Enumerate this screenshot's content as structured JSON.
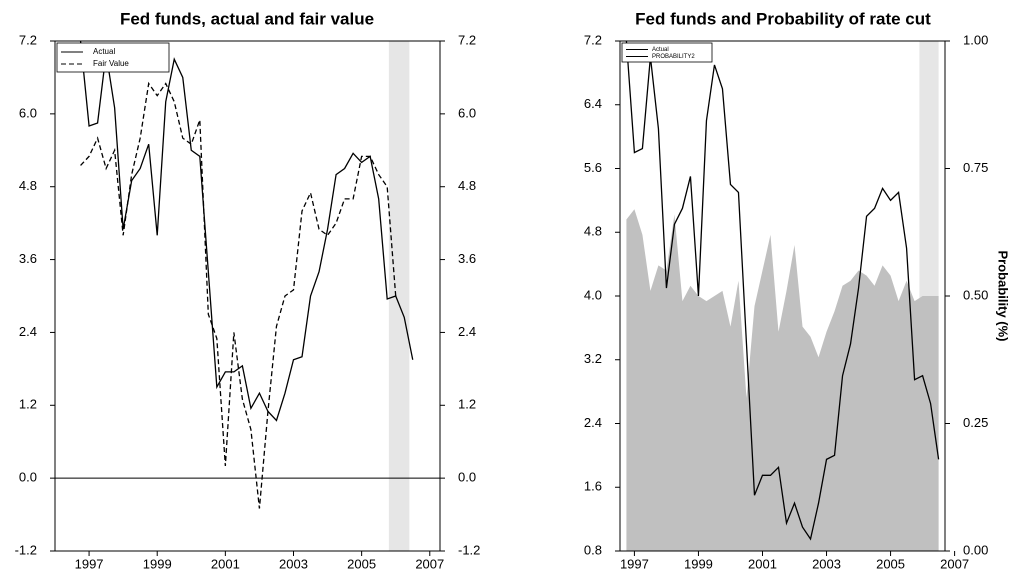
{
  "chart_data": [
    {
      "type": "line",
      "title": "Fed funds, actual and fair value",
      "x": [
        1996.75,
        1997,
        1997.25,
        1997.5,
        1997.75,
        1998,
        1998.25,
        1998.5,
        1998.75,
        1999,
        1999.25,
        1999.5,
        1999.75,
        2000,
        2000.25,
        2000.5,
        2000.75,
        2001,
        2001.25,
        2001.5,
        2001.75,
        2002,
        2002.25,
        2002.5,
        2002.75,
        2003,
        2003.25,
        2003.5,
        2003.75,
        2004,
        2004.25,
        2004.5,
        2004.75,
        2005,
        2005.25,
        2005.5,
        2005.75,
        2006,
        2006.25,
        2006.5
      ],
      "series": [
        {
          "name": "Actual",
          "color": "#000000",
          "dash": false,
          "axis": "y",
          "values": [
            7.2,
            5.8,
            5.85,
            7.0,
            6.1,
            4.1,
            4.9,
            5.1,
            5.5,
            4.0,
            6.2,
            6.9,
            6.6,
            5.4,
            5.3,
            3.4,
            1.5,
            1.75,
            1.75,
            1.85,
            1.15,
            1.4,
            1.1,
            0.95,
            1.4,
            1.95,
            2.0,
            3.0,
            3.4,
            4.1,
            5.0,
            5.1,
            5.35,
            5.2,
            5.3,
            4.6,
            2.95,
            3.0,
            2.65,
            1.95
          ]
        },
        {
          "name": "Fair Value",
          "color": "#000000",
          "dash": true,
          "axis": "y",
          "values": [
            5.15,
            5.3,
            5.6,
            5.1,
            5.4,
            4.0,
            5.0,
            5.6,
            6.5,
            6.3,
            6.5,
            6.2,
            5.6,
            5.5,
            5.9,
            2.7,
            2.3,
            0.2,
            2.4,
            1.3,
            0.8,
            -0.5,
            1.1,
            2.5,
            3.0,
            3.1,
            4.4,
            4.7,
            4.1,
            4.0,
            4.2,
            4.6,
            4.6,
            5.3,
            5.3,
            5.0,
            4.8,
            3.0,
            null,
            null
          ]
        }
      ],
      "xlim": [
        1996.0,
        2007.3
      ],
      "xticks": [
        1997,
        1999,
        2001,
        2003,
        2005,
        2007
      ],
      "ylim": [
        -1.2,
        7.2
      ],
      "yticks": [
        -1.2,
        {
          "value": 0,
          "label": "0.0"
        },
        1.2,
        2.4,
        3.6,
        4.8,
        {
          "value": 6,
          "label": "6.0"
        },
        7.2
      ],
      "y2lim": [
        -1.2,
        7.2
      ],
      "y2ticks": [
        -1.2,
        {
          "value": 0,
          "label": "0.0"
        },
        1.2,
        2.4,
        3.6,
        4.8,
        {
          "value": 6,
          "label": "6.0"
        },
        7.2
      ],
      "shaded_range": [
        2005.8,
        2006.4
      ],
      "zero_line": true,
      "legend": "top-left"
    },
    {
      "type": "line",
      "title": "Fed funds and Probability of rate cut",
      "x": [
        1996.75,
        1997,
        1997.25,
        1997.5,
        1997.75,
        1998,
        1998.25,
        1998.5,
        1998.75,
        1999,
        1999.25,
        1999.5,
        1999.75,
        2000,
        2000.25,
        2000.5,
        2000.75,
        2001,
        2001.25,
        2001.5,
        2001.75,
        2002,
        2002.25,
        2002.5,
        2002.75,
        2003,
        2003.25,
        2003.5,
        2003.75,
        2004,
        2004.25,
        2004.5,
        2004.75,
        2005,
        2005.25,
        2005.5,
        2005.75,
        2006,
        2006.25,
        2006.5
      ],
      "series": [
        {
          "name": "Actual",
          "color": "#000000",
          "dash": false,
          "axis": "y",
          "values": [
            7.2,
            5.8,
            5.85,
            7.0,
            6.1,
            4.1,
            4.9,
            5.1,
            5.5,
            4.0,
            6.2,
            6.9,
            6.6,
            5.4,
            5.3,
            3.4,
            1.5,
            1.75,
            1.75,
            1.85,
            1.15,
            1.4,
            1.1,
            0.95,
            1.4,
            1.95,
            2.0,
            3.0,
            3.4,
            4.1,
            5.0,
            5.1,
            5.35,
            5.2,
            5.3,
            4.6,
            2.95,
            3.0,
            2.65,
            1.95
          ]
        },
        {
          "name": "PROBABILITY2",
          "color": "#c0c0c0",
          "dash": false,
          "axis": "y2",
          "area": true,
          "values": [
            0.65,
            0.67,
            0.62,
            0.51,
            0.56,
            0.55,
            0.66,
            0.49,
            0.52,
            0.5,
            0.49,
            0.5,
            0.51,
            0.44,
            0.53,
            0.3,
            0.48,
            0.55,
            0.62,
            0.43,
            0.51,
            0.6,
            0.44,
            0.42,
            0.38,
            0.43,
            0.47,
            0.52,
            0.53,
            0.55,
            0.54,
            0.52,
            0.56,
            0.54,
            0.49,
            0.53,
            0.49,
            0.5,
            0.5,
            0.5
          ]
        }
      ],
      "xlim": [
        1996.55,
        2006.7
      ],
      "xticks": [
        1997,
        1999,
        2001,
        2003,
        2005,
        2007
      ],
      "ylim": [
        0.8,
        7.2
      ],
      "yticks": [
        0.8,
        1.6,
        2.4,
        3.2,
        {
          "value": 4,
          "label": "4.0"
        },
        4.8,
        5.6,
        6.4,
        7.2
      ],
      "y2label": "Probability (%)",
      "y2lim": [
        0,
        1
      ],
      "y2ticks": [
        {
          "value": 0,
          "label": "0.00"
        },
        {
          "value": 0.25,
          "label": "0.25"
        },
        {
          "value": 0.5,
          "label": "0.50"
        },
        {
          "value": 0.75,
          "label": "0.75"
        },
        {
          "value": 1,
          "label": "1.00"
        }
      ],
      "shaded_range": [
        2005.9,
        2006.5
      ],
      "zero_line": false,
      "legend": "top-left"
    }
  ]
}
